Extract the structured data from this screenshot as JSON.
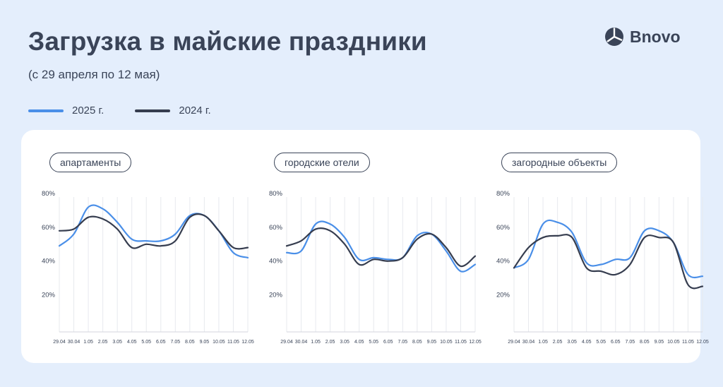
{
  "header": {
    "title": "Загрузка в майские праздники",
    "subtitle": "(с 29 апреля по 12 мая)",
    "logo_text": "Bnovo"
  },
  "legend": [
    {
      "label": "2025 г.",
      "color": "#4a8fe8"
    },
    {
      "label": "2024 г.",
      "color": "#363d4f"
    }
  ],
  "chart_data": [
    {
      "type": "line",
      "title": "апартаменты",
      "x": [
        "29.04",
        "30.04",
        "1.05",
        "2.05",
        "3.05",
        "4.05",
        "5.05",
        "6.05",
        "7.05",
        "8.05",
        "9.05",
        "10.05",
        "11.05",
        "12.05"
      ],
      "yticks": [
        "20%",
        "40%",
        "60%",
        "80%"
      ],
      "ylim": [
        0,
        80
      ],
      "grid": true,
      "series": [
        {
          "name": "2025 г.",
          "color": "#4a8fe8",
          "values": [
            51,
            58,
            74,
            73,
            65,
            55,
            54,
            54,
            58,
            69,
            69,
            60,
            47,
            44
          ]
        },
        {
          "name": "2024 г.",
          "color": "#363d4f",
          "values": [
            60,
            61,
            68,
            67,
            61,
            50,
            52,
            51,
            54,
            68,
            69,
            60,
            50,
            50
          ]
        }
      ]
    },
    {
      "type": "line",
      "title": "городские отели",
      "x": [
        "29.04",
        "30.04",
        "1.05",
        "2.05",
        "3.05",
        "4.05",
        "5.05",
        "6.05",
        "7.05",
        "8.05",
        "9.05",
        "10.05",
        "11.05",
        "12.05"
      ],
      "yticks": [
        "20%",
        "40%",
        "60%",
        "80%"
      ],
      "ylim": [
        0,
        80
      ],
      "grid": true,
      "series": [
        {
          "name": "2025 г.",
          "color": "#4a8fe8",
          "values": [
            47,
            48,
            64,
            64,
            56,
            43,
            44,
            43,
            44,
            57,
            58,
            48,
            36,
            40
          ]
        },
        {
          "name": "2024 г.",
          "color": "#363d4f",
          "values": [
            51,
            54,
            61,
            60,
            52,
            40,
            43,
            42,
            44,
            55,
            58,
            50,
            39,
            45
          ]
        }
      ]
    },
    {
      "type": "line",
      "title": "загородные объекты",
      "x": [
        "29.04",
        "30.04",
        "1.05",
        "2.05",
        "3.05",
        "4.05",
        "5.05",
        "6.05",
        "7.05",
        "8.05",
        "9.05",
        "10.05",
        "11.05",
        "12.05"
      ],
      "yticks": [
        "20%",
        "40%",
        "60%",
        "80%"
      ],
      "ylim": [
        0,
        80
      ],
      "grid": true,
      "series": [
        {
          "name": "2025 г.",
          "color": "#4a8fe8",
          "values": [
            38,
            43,
            64,
            65,
            59,
            41,
            40,
            43,
            44,
            60,
            60,
            53,
            34,
            33
          ]
        },
        {
          "name": "2024 г.",
          "color": "#363d4f",
          "values": [
            38,
            50,
            56,
            57,
            56,
            38,
            36,
            34,
            40,
            56,
            56,
            53,
            28,
            27
          ]
        }
      ]
    }
  ]
}
